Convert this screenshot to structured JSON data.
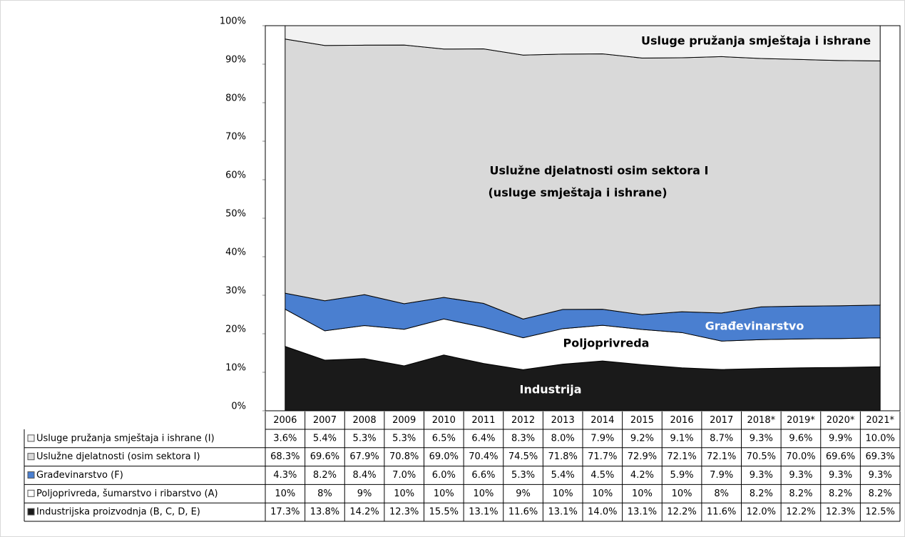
{
  "chart_data": {
    "type": "area",
    "stacked_percent": true,
    "categories": [
      "2006",
      "2007",
      "2008",
      "2009",
      "2010",
      "2011",
      "2012",
      "2013",
      "2014",
      "2015",
      "2016",
      "2017",
      "2018*",
      "2019*",
      "2020*",
      "2021*"
    ],
    "ylim": [
      0,
      100
    ],
    "yticks": [
      {
        "value": 0,
        "label": "0%"
      },
      {
        "value": 10,
        "label": "10%"
      },
      {
        "value": 20,
        "label": "20%"
      },
      {
        "value": 30,
        "label": "30%"
      },
      {
        "value": 40,
        "label": "40%"
      },
      {
        "value": 50,
        "label": "50%"
      },
      {
        "value": 60,
        "label": "60%"
      },
      {
        "value": 70,
        "label": "70%"
      },
      {
        "value": 80,
        "label": "80%"
      },
      {
        "value": 90,
        "label": "90%"
      },
      {
        "value": 100,
        "label": "100%"
      }
    ],
    "series": [
      {
        "name": "Usluge pružanja smještaja i ishrane (I)",
        "color": "#f2f2f2",
        "values": [
          3.6,
          5.4,
          5.3,
          5.3,
          6.5,
          6.4,
          8.3,
          8.0,
          7.9,
          9.2,
          9.1,
          8.7,
          9.3,
          9.6,
          9.9,
          10.0
        ],
        "value_labels": [
          "3.6%",
          "5.4%",
          "5.3%",
          "5.3%",
          "6.5%",
          "6.4%",
          "8.3%",
          "8.0%",
          "7.9%",
          "9.2%",
          "9.1%",
          "8.7%",
          "9.3%",
          "9.6%",
          "9.9%",
          "10.0%"
        ]
      },
      {
        "name": "Uslužne djelatnosti (osim sektora I)",
        "color": "#d9d9d9",
        "values": [
          68.3,
          69.6,
          67.9,
          70.8,
          69.0,
          70.4,
          74.5,
          71.8,
          71.7,
          72.9,
          72.1,
          72.1,
          70.5,
          70.0,
          69.6,
          69.3
        ],
        "value_labels": [
          "68.3%",
          "69.6%",
          "67.9%",
          "70.8%",
          "69.0%",
          "70.4%",
          "74.5%",
          "71.8%",
          "71.7%",
          "72.9%",
          "72.1%",
          "72.1%",
          "70.5%",
          "70.0%",
          "69.6%",
          "69.3%"
        ]
      },
      {
        "name": "Građevinarstvo (F)",
        "color": "#4a7fd0",
        "values": [
          4.3,
          8.2,
          8.4,
          7.0,
          6.0,
          6.6,
          5.3,
          5.4,
          4.5,
          4.2,
          5.9,
          7.9,
          9.3,
          9.3,
          9.3,
          9.3
        ],
        "value_labels": [
          "4.3%",
          "8.2%",
          "8.4%",
          "7.0%",
          "6.0%",
          "6.6%",
          "5.3%",
          "5.4%",
          "4.5%",
          "4.2%",
          "5.9%",
          "7.9%",
          "9.3%",
          "9.3%",
          "9.3%",
          "9.3%"
        ]
      },
      {
        "name": "Poljoprivreda, šumarstvo i ribarstvo (A)",
        "color": "#ffffff",
        "values": [
          10,
          8,
          9,
          10,
          10,
          10,
          9,
          10,
          10,
          10,
          10,
          8,
          8.2,
          8.2,
          8.2,
          8.2
        ],
        "value_labels": [
          "10%",
          "8%",
          "9%",
          "10%",
          "10%",
          "10%",
          "9%",
          "10%",
          "10%",
          "10%",
          "10%",
          "8%",
          "8.2%",
          "8.2%",
          "8.2%",
          "8.2%"
        ]
      },
      {
        "name": "Industrijska proizvodnja (B, C, D, E)",
        "color": "#1a1a1a",
        "values": [
          17.3,
          13.8,
          14.2,
          12.3,
          15.5,
          13.1,
          11.6,
          13.1,
          14.0,
          13.1,
          12.2,
          11.6,
          12.0,
          12.2,
          12.3,
          12.5
        ],
        "value_labels": [
          "17.3%",
          "13.8%",
          "14.2%",
          "12.3%",
          "15.5%",
          "13.1%",
          "11.6%",
          "13.1%",
          "14.0%",
          "13.1%",
          "12.2%",
          "11.6%",
          "12.0%",
          "12.2%",
          "12.3%",
          "12.5%"
        ]
      }
    ],
    "annotations": [
      "Usluge pružanja smještaja i ishrane",
      "Uslužne djelatnosti osim sektora I",
      "(usluge smještaja i ishrane)",
      "Građevinarstvo",
      "Poljoprivreda",
      "Industrija"
    ]
  }
}
